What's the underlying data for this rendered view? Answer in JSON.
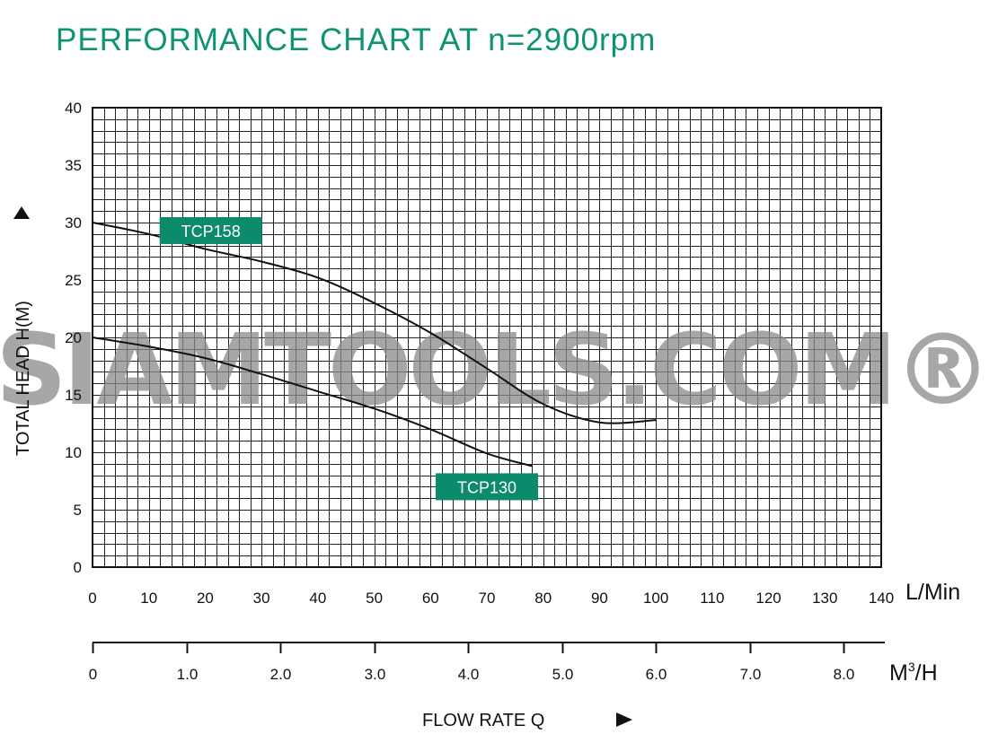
{
  "chart_data": {
    "type": "line",
    "title": "PERFORMANCE CHART AT n=2900rpm",
    "ylabel": "TOTAL HEAD H(M)",
    "xlabel": "FLOW RATE Q",
    "x_unit": "L/Min",
    "x2_unit_base": "M",
    "x2_unit_sup": "3",
    "x2_unit_tail": "/H",
    "xlim": [
      0,
      140
    ],
    "ylim": [
      0,
      40
    ],
    "x_ticks": [
      "0",
      "10",
      "20",
      "30",
      "40",
      "50",
      "60",
      "70",
      "80",
      "90",
      "100",
      "110",
      "120",
      "130",
      "140"
    ],
    "y_ticks": [
      "0",
      "5",
      "10",
      "15",
      "20",
      "25",
      "30",
      "35",
      "40"
    ],
    "x2_ticks": [
      "0",
      "1.0",
      "2.0",
      "3.0",
      "4.0",
      "5.0",
      "6.0",
      "7.0",
      "8.0"
    ],
    "grid": true,
    "series": [
      {
        "name": "TCP158",
        "x": [
          0,
          10,
          20,
          30,
          40,
          50,
          60,
          70,
          80,
          90,
          100
        ],
        "y": [
          30,
          29.0,
          27.7,
          26.6,
          25.2,
          23.0,
          20.4,
          17.3,
          14.2,
          12.6,
          12.8
        ]
      },
      {
        "name": "TCP130",
        "x": [
          0,
          10,
          20,
          30,
          40,
          50,
          60,
          70,
          78
        ],
        "y": [
          20,
          19.2,
          18.2,
          16.8,
          15.3,
          13.8,
          12.0,
          9.9,
          8.8
        ]
      }
    ]
  },
  "watermark": "SIAMTOOLS.COM®",
  "colors": {
    "accent": "#0e9473",
    "tag": "#0b8a6c",
    "watermark": "#8a8a8a"
  }
}
